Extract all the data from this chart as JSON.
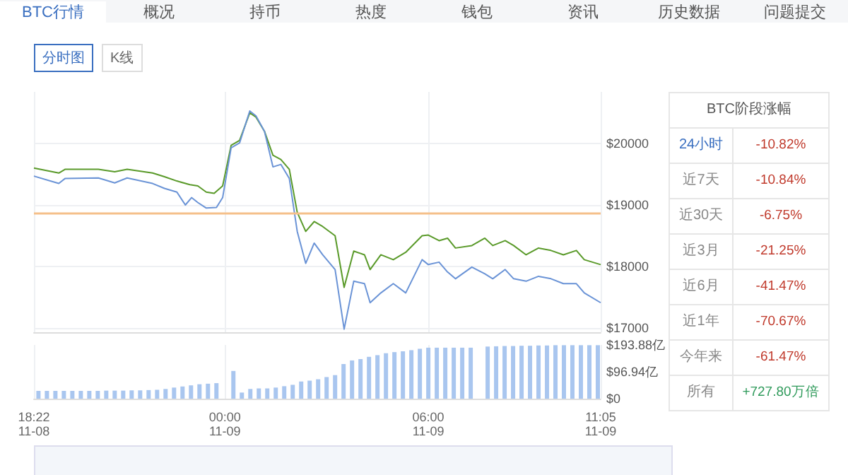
{
  "chart_data": [
    {
      "type": "other",
      "annotations": [
        "BTC行情",
        "概况",
        "持币",
        "热度",
        "钱包",
        "资讯",
        "历史数据",
        "问题提交"
      ]
    },
    {
      "type": "other",
      "annotations": [
        "分时图",
        "K线"
      ]
    },
    {
      "type": "line",
      "xlim": [
        "--11-08T18:22",
        "--11-09T11:05"
      ],
      "ylim": [
        16930,
        20840
      ],
      "yticks": [
        {
          "value": 17000,
          "label": "$17000"
        },
        {
          "value": 18000,
          "label": "$18000"
        },
        {
          "value": 19000,
          "label": "$19000"
        },
        {
          "value": 20000,
          "label": "$20000"
        }
      ],
      "xticks": [
        {
          "value": "--11-08T18:22",
          "label": null
        },
        {
          "value": "--11-09T00:00",
          "label": null
        },
        {
          "value": "--11-09T06:00",
          "label": null
        },
        {
          "value": "--11-09T11:05",
          "label": null
        }
      ],
      "tick_labels": "y",
      "grid": true,
      "marker": "none",
      "line_style": "solid",
      "ref_lines": [
        {
          "axis": "y",
          "value": 18870,
          "color": "#f5c08a"
        }
      ],
      "series": [
        {
          "color": "#5a9a2a",
          "x": [
            "--11-08T18:22",
            "--11-08T19:06",
            "--11-08T19:17",
            "--11-08T20:16",
            "--11-08T20:45",
            "--11-08T21:07",
            "--11-08T21:52",
            "--11-08T22:13",
            "--11-08T22:35",
            "--11-08T22:58",
            "--11-08T23:12",
            "--11-08T23:27",
            "--11-08T23:41",
            "--11-08T23:56",
            "--11-09T00:11",
            "--11-09T00:26",
            "--11-09T00:44",
            "--11-09T00:55",
            "--11-09T01:10",
            "--11-09T01:25",
            "--11-09T01:39",
            "--11-09T01:54",
            "--11-09T02:08",
            "--11-09T02:23",
            "--11-09T02:38",
            "--11-09T02:53",
            "--11-09T03:15",
            "--11-09T03:31",
            "--11-09T03:48",
            "--11-09T04:07",
            "--11-09T04:17",
            "--11-09T04:36",
            "--11-09T04:58",
            "--11-09T05:20",
            "--11-09T05:49",
            "--11-09T06:00",
            "--11-09T06:19",
            "--11-09T06:34",
            "--11-09T06:48",
            "--11-09T07:17",
            "--11-09T07:40",
            "--11-09T07:54",
            "--11-09T08:16",
            "--11-09T08:31",
            "--11-09T08:53",
            "--11-09T09:15",
            "--11-09T09:37",
            "--11-09T09:59",
            "--11-09T10:22",
            "--11-09T10:36",
            "--11-09T11:05"
          ],
          "values": [
            19600,
            19520,
            19580,
            19580,
            19540,
            19580,
            19520,
            19460,
            19390,
            19330,
            19310,
            19210,
            19190,
            19310,
            19970,
            20050,
            20500,
            20430,
            20200,
            19810,
            19740,
            19580,
            18880,
            18570,
            18730,
            18650,
            18500,
            17660,
            18250,
            18190,
            17950,
            18190,
            18110,
            18230,
            18500,
            18510,
            18420,
            18460,
            18300,
            18340,
            18460,
            18340,
            18420,
            18340,
            18190,
            18300,
            18260,
            18190,
            18260,
            18110,
            18030
          ]
        },
        {
          "color": "#6a93d6",
          "x": [
            "--11-08T18:22",
            "--11-08T19:06",
            "--11-08T19:17",
            "--11-08T20:16",
            "--11-08T20:45",
            "--11-08T21:07",
            "--11-08T21:52",
            "--11-08T22:13",
            "--11-08T22:35",
            "--11-08T22:50",
            "--11-08T23:01",
            "--11-08T23:12",
            "--11-08T23:27",
            "--11-08T23:45",
            "--11-08T23:56",
            "--11-09T00:11",
            "--11-09T00:26",
            "--11-09T00:44",
            "--11-09T00:55",
            "--11-09T01:10",
            "--11-09T01:25",
            "--11-09T01:39",
            "--11-09T01:54",
            "--11-09T02:08",
            "--11-09T02:23",
            "--11-09T02:38",
            "--11-09T02:53",
            "--11-09T03:15",
            "--11-09T03:31",
            "--11-09T03:48",
            "--11-09T04:07",
            "--11-09T04:17",
            "--11-09T04:36",
            "--11-09T04:58",
            "--11-09T05:20",
            "--11-09T05:49",
            "--11-09T06:00",
            "--11-09T06:19",
            "--11-09T06:34",
            "--11-09T06:48",
            "--11-09T07:17",
            "--11-09T07:40",
            "--11-09T07:54",
            "--11-09T08:16",
            "--11-09T08:31",
            "--11-09T08:53",
            "--11-09T09:15",
            "--11-09T09:37",
            "--11-09T09:59",
            "--11-09T10:22",
            "--11-09T10:36",
            "--11-09T11:05"
          ],
          "values": [
            19470,
            19350,
            19430,
            19440,
            19360,
            19440,
            19350,
            19270,
            19210,
            19000,
            19120,
            19040,
            18950,
            18960,
            19120,
            19930,
            20010,
            20530,
            20450,
            20200,
            19620,
            19660,
            19430,
            18570,
            18050,
            18380,
            18190,
            17950,
            16980,
            17760,
            17720,
            17410,
            17570,
            17720,
            17570,
            18110,
            18030,
            18070,
            17910,
            17800,
            17990,
            17880,
            17800,
            17950,
            17800,
            17760,
            17840,
            17800,
            17720,
            17720,
            17570,
            17410
          ]
        }
      ]
    },
    {
      "type": "bar",
      "xlim": [
        "--11-08T18:22",
        "--11-09T11:05"
      ],
      "ylim": [
        0,
        193.88
      ],
      "yticks": [
        {
          "value": 0,
          "label": "$0"
        },
        {
          "value": 96.94,
          "label": "$96.94亿"
        },
        {
          "value": 193.88,
          "label": "$193.88亿"
        }
      ],
      "xticks": [
        {
          "value": "--11-08T18:22",
          "label": "18:22\n11-08"
        },
        {
          "value": "--11-09T00:00",
          "label": "00:00\n11-09"
        },
        {
          "value": "--11-09T06:00",
          "label": "06:00\n11-09"
        },
        {
          "value": "--11-09T11:05",
          "label": "11:05\n11-09"
        }
      ],
      "grid": "x",
      "color": "#a9c6ef",
      "x": [
        "--11-08T18:30",
        "--11-08T18:45",
        "--11-08T19:00",
        "--11-08T19:15",
        "--11-08T19:30",
        "--11-08T19:45",
        "--11-08T20:00",
        "--11-08T20:15",
        "--11-08T20:30",
        "--11-08T20:45",
        "--11-08T21:00",
        "--11-08T21:15",
        "--11-08T21:30",
        "--11-08T21:45",
        "--11-08T22:00",
        "--11-08T22:15",
        "--11-08T22:30",
        "--11-08T22:45",
        "--11-08T23:00",
        "--11-08T23:15",
        "--11-08T23:30",
        "--11-08T23:45",
        "--11-09T00:00",
        "--11-09T00:15",
        "--11-09T00:30",
        "--11-09T00:45",
        "--11-09T01:00",
        "--11-09T01:15",
        "--11-09T01:30",
        "--11-09T01:45",
        "--11-09T02:00",
        "--11-09T02:15",
        "--11-09T02:30",
        "--11-09T02:45",
        "--11-09T03:00",
        "--11-09T03:15",
        "--11-09T03:30",
        "--11-09T03:45",
        "--11-09T04:00",
        "--11-09T04:15",
        "--11-09T04:30",
        "--11-09T04:45",
        "--11-09T05:00",
        "--11-09T05:15",
        "--11-09T05:30",
        "--11-09T05:45",
        "--11-09T06:00",
        "--11-09T06:15",
        "--11-09T06:30",
        "--11-09T06:45",
        "--11-09T07:00",
        "--11-09T07:15",
        "--11-09T07:30",
        "--11-09T07:45",
        "--11-09T08:00",
        "--11-09T08:15",
        "--11-09T08:30",
        "--11-09T08:45",
        "--11-09T09:00",
        "--11-09T09:15",
        "--11-09T09:30",
        "--11-09T09:45",
        "--11-09T10:00",
        "--11-09T10:15",
        "--11-09T10:30",
        "--11-09T10:45",
        "--11-09T11:00"
      ],
      "values": [
        28,
        28,
        28,
        28,
        28,
        28,
        28,
        28,
        29,
        29,
        29,
        30,
        30,
        31,
        32,
        35,
        40,
        44,
        48,
        52,
        54,
        56,
        null,
        100,
        22,
        35,
        37,
        37,
        40,
        45,
        50,
        62,
        65,
        70,
        78,
        85,
        125,
        138,
        143,
        151,
        157,
        164,
        168,
        171,
        175,
        180,
        184,
        184,
        184,
        184,
        184,
        184,
        null,
        188,
        189,
        190,
        190,
        191,
        191,
        192,
        192,
        193,
        193,
        193,
        193,
        193,
        193
      ]
    },
    {
      "type": "other",
      "title": "BTC阶段涨幅",
      "annotations": [
        "24小时",
        "-10.82%",
        "近7天",
        "-10.84%",
        "近30天",
        "-6.75%",
        "近3月",
        "-21.25%",
        "近6月",
        "-41.47%",
        "近1年",
        "-70.67%",
        "今年来",
        "-61.47%",
        "所有",
        "+727.80万倍"
      ]
    }
  ]
}
